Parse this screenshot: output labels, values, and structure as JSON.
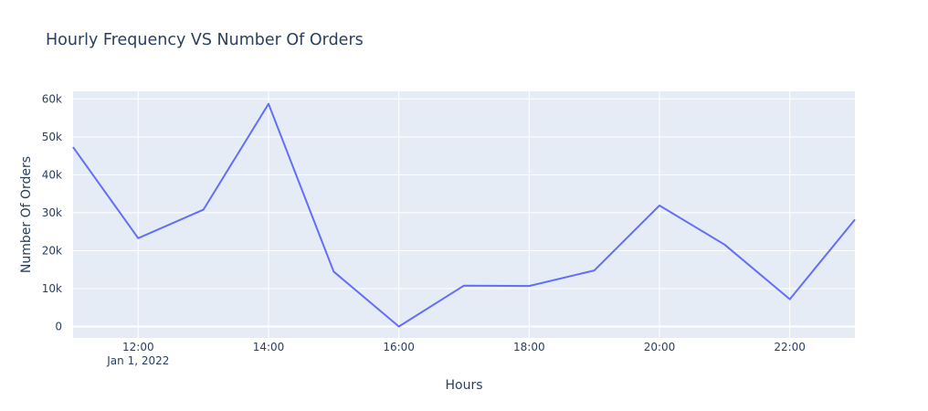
{
  "title": "Hourly Frequency VS Number Of Orders",
  "chart_data": {
    "type": "line",
    "title": "Hourly Frequency VS Number Of Orders",
    "xlabel": "Hours",
    "ylabel": "Number Of Orders",
    "x": [
      "2022-01-01 11:00",
      "2022-01-01 12:00",
      "2022-01-01 13:00",
      "2022-01-01 14:00",
      "2022-01-01 15:00",
      "2022-01-01 16:00",
      "2022-01-01 17:00",
      "2022-01-01 18:00",
      "2022-01-01 19:00",
      "2022-01-01 20:00",
      "2022-01-01 21:00",
      "2022-01-01 22:00",
      "2022-01-01 23:00"
    ],
    "series": [
      {
        "values": [
          47300,
          23300,
          30800,
          58700,
          14500,
          0,
          10800,
          10700,
          14800,
          31900,
          21600,
          7200,
          28200
        ]
      }
    ],
    "xlim": [
      "2022-01-01 11:00",
      "2022-01-01 23:00"
    ],
    "ylim": [
      -3000,
      62000
    ],
    "xticks": [
      {
        "hour": 12,
        "label": "12:00",
        "sublabel": "Jan 1, 2022"
      },
      {
        "hour": 14,
        "label": "14:00"
      },
      {
        "hour": 16,
        "label": "16:00"
      },
      {
        "hour": 18,
        "label": "18:00"
      },
      {
        "hour": 20,
        "label": "20:00"
      },
      {
        "hour": 22,
        "label": "22:00"
      }
    ],
    "yticks": [
      {
        "value": 0,
        "label": "0"
      },
      {
        "value": 10000,
        "label": "10k"
      },
      {
        "value": 20000,
        "label": "20k"
      },
      {
        "value": 30000,
        "label": "30k"
      },
      {
        "value": 40000,
        "label": "40k"
      },
      {
        "value": 50000,
        "label": "50k"
      },
      {
        "value": 60000,
        "label": "60k"
      }
    ],
    "grid": true,
    "colors": {
      "line": "#636efa",
      "plot_bg": "#e5ecf6",
      "grid": "#ffffff",
      "text": "#2a3f5f"
    }
  }
}
